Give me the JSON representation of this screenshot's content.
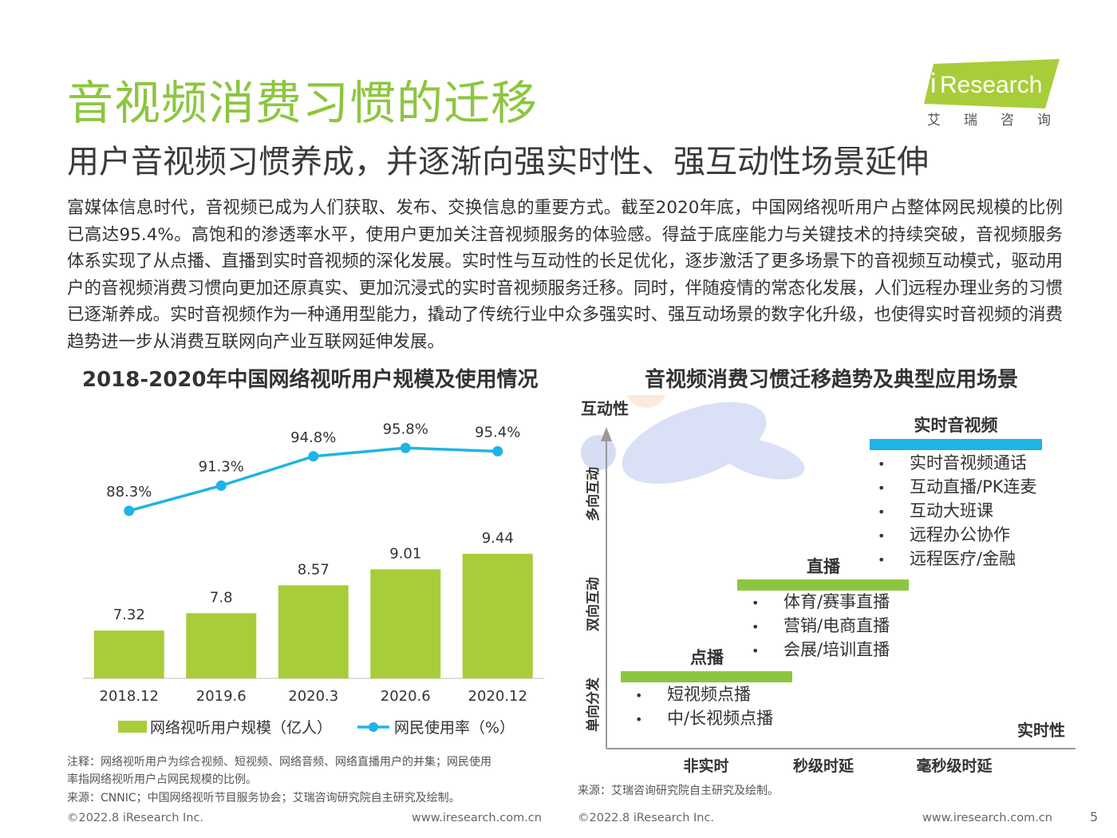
{
  "page": {
    "title": "音视频消费习惯的迁移",
    "subtitle": "用户音视频习惯养成，并逐渐向强实时性、强互动性场景延伸",
    "logo_text": "Research",
    "logo_i": "i",
    "logo_sub": "艾瑞咨询",
    "body": "富媒体信息时代，音视频已成为人们获取、发布、交换信息的重要方式。截至2020年底，中国网络视听用户占整体网民规模的比例已高达95.4%。高饱和的渗透率水平，使用户更加关注音视频服务的体验感。得益于底座能力与关键技术的持续突破，音视频服务体系实现了从点播、直播到实时音视频的深化发展。实时性与互动性的长足优化，逐步激活了更多场景下的音视频互动模式，驱动用户的音视频消费习惯向更加还原真实、更加沉浸式的实时音视频服务迁移。同时，伴随疫情的常态化发展，人们远程办理业务的习惯已逐渐养成。实时音视频作为一种通用型能力，撬动了传统行业中众多强实时、强互动场景的数字化升级，也使得实时音视频的消费趋势进一步从消费互联网向产业互联网延伸发展。",
    "note_line1": "注释：网络视听用户为综合视频、短视频、网络音频、网络直播用户的并集；网民使用",
    "note_line2": "率指网络视听用户占网民规模的比例。",
    "source_left": "来源：CNNIC；中国网络视听节目服务协会；艾瑞咨询研究院自主研究及绘制。",
    "source_right": "来源：艾瑞咨询研究院自主研究及绘制。",
    "footer_copyright": "©2022.8 iResearch Inc.",
    "footer_url": "www.iresearch.com.cn",
    "page_number": "5"
  },
  "chart_data": [
    {
      "type": "bar",
      "title": "2018-2020年中国网络视听用户规模及使用情况",
      "categories": [
        "2018.12",
        "2019.6",
        "2020.3",
        "2020.6",
        "2020.12"
      ],
      "series": [
        {
          "name": "网络视听用户规模（亿人）",
          "type": "bar",
          "values": [
            7.32,
            7.8,
            8.57,
            9.01,
            9.44
          ],
          "labels": [
            "7.32",
            "7.8",
            "8.57",
            "9.01",
            "9.44"
          ],
          "color": "#a8cd3a"
        },
        {
          "name": "网民使用率（%）",
          "type": "line",
          "values": [
            88.3,
            91.3,
            94.8,
            95.8,
            95.4
          ],
          "labels": [
            "88.3%",
            "91.3%",
            "94.8%",
            "95.8%",
            "95.4%"
          ],
          "color": "#1eb4e6"
        }
      ],
      "legend_position": "bottom"
    },
    {
      "type": "diagram",
      "title": "音视频消费习惯迁移趋势及典型应用场景",
      "y_axis_label": "互动性",
      "x_axis_label": "实时性",
      "y_levels": [
        "单向分发",
        "双向互动",
        "多向互动"
      ],
      "x_levels": [
        "非实时",
        "秒级时延",
        "毫秒级时延"
      ],
      "stages": [
        {
          "name": "点播",
          "color": "#8cc63f",
          "items": [
            "短视频点播",
            "中/长视频点播"
          ]
        },
        {
          "name": "直播",
          "color": "#8cc63f",
          "items": [
            "体育/赛事直播",
            "营销/电商直播",
            "会展/培训直播"
          ]
        },
        {
          "name": "实时音视频",
          "color": "#1eb4e6",
          "items": [
            "实时音视频通话",
            "互动直播/PK连麦",
            "互动大班课",
            "远程办公协作",
            "远程医疗/金融"
          ]
        }
      ]
    }
  ]
}
